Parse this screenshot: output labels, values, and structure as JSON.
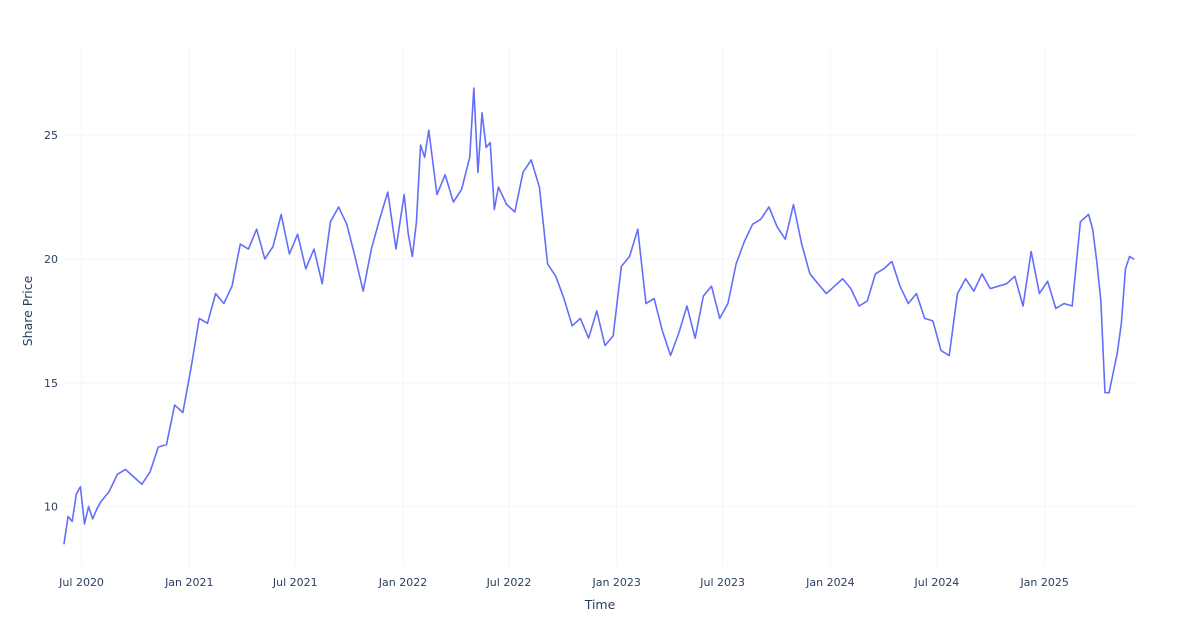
{
  "chart_data": {
    "type": "line",
    "title": "",
    "xlabel": "Time",
    "ylabel": "Share Price",
    "xlim": [
      "2020-06-01",
      "2025-06-06"
    ],
    "ylim": [
      7.6,
      28.6
    ],
    "grid": true,
    "legend": "none",
    "colors": {
      "line": "#636efa",
      "grid": "#f2f4f8",
      "text": "#2a3f5f",
      "background": "#ffffff"
    },
    "x_ticks": [
      {
        "date": "2020-07-01",
        "label": "Jul 2020"
      },
      {
        "date": "2021-01-01",
        "label": "Jan 2021"
      },
      {
        "date": "2021-07-01",
        "label": "Jul 2021"
      },
      {
        "date": "2022-01-01",
        "label": "Jan 2022"
      },
      {
        "date": "2022-07-01",
        "label": "Jul 2022"
      },
      {
        "date": "2023-01-01",
        "label": "Jan 2023"
      },
      {
        "date": "2023-07-01",
        "label": "Jul 2023"
      },
      {
        "date": "2024-01-01",
        "label": "Jan 2024"
      },
      {
        "date": "2024-07-01",
        "label": "Jul 2024"
      },
      {
        "date": "2025-01-01",
        "label": "Jan 2025"
      }
    ],
    "y_ticks": [
      {
        "value": 10,
        "label": "10"
      },
      {
        "value": 15,
        "label": "15"
      },
      {
        "value": 20,
        "label": "20"
      },
      {
        "value": 25,
        "label": "25"
      }
    ],
    "series": [
      {
        "name": "",
        "x": [
          "2020-06-01",
          "2020-06-08",
          "2020-06-15",
          "2020-06-22",
          "2020-06-29",
          "2020-07-06",
          "2020-07-13",
          "2020-07-20",
          "2020-07-27",
          "2020-08-03",
          "2020-08-17",
          "2020-08-31",
          "2020-09-14",
          "2020-09-28",
          "2020-10-12",
          "2020-10-26",
          "2020-11-09",
          "2020-11-23",
          "2020-12-07",
          "2020-12-21",
          "2021-01-04",
          "2021-01-18",
          "2021-02-01",
          "2021-02-15",
          "2021-03-01",
          "2021-03-15",
          "2021-03-29",
          "2021-04-12",
          "2021-04-26",
          "2021-05-10",
          "2021-05-24",
          "2021-06-07",
          "2021-06-21",
          "2021-07-05",
          "2021-07-19",
          "2021-08-02",
          "2021-08-16",
          "2021-08-30",
          "2021-09-13",
          "2021-09-27",
          "2021-10-11",
          "2021-10-25",
          "2021-11-08",
          "2021-11-22",
          "2021-12-06",
          "2021-12-20",
          "2022-01-03",
          "2022-01-10",
          "2022-01-17",
          "2022-01-24",
          "2022-01-31",
          "2022-02-07",
          "2022-02-14",
          "2022-02-28",
          "2022-03-14",
          "2022-03-28",
          "2022-04-11",
          "2022-04-25",
          "2022-05-02",
          "2022-05-09",
          "2022-05-16",
          "2022-05-23",
          "2022-05-30",
          "2022-06-06",
          "2022-06-13",
          "2022-06-27",
          "2022-07-11",
          "2022-07-25",
          "2022-08-08",
          "2022-08-22",
          "2022-09-05",
          "2022-09-19",
          "2022-10-03",
          "2022-10-17",
          "2022-10-31",
          "2022-11-14",
          "2022-11-28",
          "2022-12-12",
          "2022-12-26",
          "2023-01-09",
          "2023-01-23",
          "2023-02-06",
          "2023-02-20",
          "2023-03-06",
          "2023-03-20",
          "2023-04-03",
          "2023-04-17",
          "2023-05-01",
          "2023-05-15",
          "2023-05-29",
          "2023-06-12",
          "2023-06-26",
          "2023-07-10",
          "2023-07-24",
          "2023-08-07",
          "2023-08-21",
          "2023-09-04",
          "2023-09-18",
          "2023-10-02",
          "2023-10-16",
          "2023-10-30",
          "2023-11-13",
          "2023-11-27",
          "2023-12-11",
          "2023-12-25",
          "2024-01-08",
          "2024-01-22",
          "2024-02-05",
          "2024-02-19",
          "2024-03-04",
          "2024-03-18",
          "2024-04-01",
          "2024-04-15",
          "2024-04-29",
          "2024-05-13",
          "2024-05-27",
          "2024-06-10",
          "2024-06-24",
          "2024-07-08",
          "2024-07-22",
          "2024-08-05",
          "2024-08-19",
          "2024-09-02",
          "2024-09-16",
          "2024-09-30",
          "2024-10-14",
          "2024-10-28",
          "2024-11-11",
          "2024-11-25",
          "2024-12-09",
          "2024-12-23",
          "2025-01-06",
          "2025-01-20",
          "2025-02-03",
          "2025-02-17",
          "2025-03-03",
          "2025-03-17",
          "2025-03-24",
          "2025-03-31",
          "2025-04-07",
          "2025-04-14",
          "2025-04-21",
          "2025-04-28",
          "2025-05-05",
          "2025-05-12",
          "2025-05-19",
          "2025-05-26",
          "2025-06-02"
        ],
        "values": [
          8.5,
          9.6,
          9.4,
          10.5,
          10.8,
          9.3,
          10.0,
          9.5,
          9.9,
          10.2,
          10.6,
          11.3,
          11.5,
          11.2,
          10.9,
          11.4,
          12.4,
          12.5,
          14.1,
          13.8,
          15.6,
          17.6,
          17.4,
          18.6,
          18.2,
          18.9,
          20.6,
          20.4,
          21.2,
          20.0,
          20.5,
          21.8,
          20.2,
          21.0,
          19.6,
          20.4,
          19.0,
          21.5,
          22.1,
          21.4,
          20.1,
          18.7,
          20.4,
          21.6,
          22.7,
          20.4,
          22.6,
          21.0,
          20.1,
          21.5,
          24.6,
          24.1,
          25.2,
          22.6,
          23.4,
          22.3,
          22.8,
          24.1,
          26.9,
          23.5,
          25.9,
          24.5,
          24.7,
          22.0,
          22.9,
          22.2,
          21.9,
          23.5,
          24.0,
          22.9,
          19.8,
          19.3,
          18.4,
          17.3,
          17.6,
          16.8,
          17.9,
          16.5,
          16.9,
          19.7,
          20.1,
          21.2,
          18.2,
          18.4,
          17.1,
          16.1,
          17.0,
          18.1,
          16.8,
          18.5,
          18.9,
          17.6,
          18.2,
          19.8,
          20.7,
          21.4,
          21.6,
          22.1,
          21.3,
          20.8,
          22.2,
          20.6,
          19.4,
          19.0,
          18.6,
          18.9,
          19.2,
          18.8,
          18.1,
          18.3,
          19.4,
          19.6,
          19.9,
          18.9,
          18.2,
          18.6,
          17.6,
          17.5,
          16.3,
          16.1,
          18.6,
          19.2,
          18.7,
          19.4,
          18.8,
          18.9,
          19.0,
          19.3,
          18.1,
          20.3,
          18.6,
          19.1,
          18.0,
          18.2,
          18.1,
          21.5,
          21.8,
          21.2,
          19.9,
          18.3,
          14.6,
          14.6,
          15.4,
          16.2,
          17.4,
          19.6,
          20.1,
          20.0
        ]
      }
    ]
  }
}
